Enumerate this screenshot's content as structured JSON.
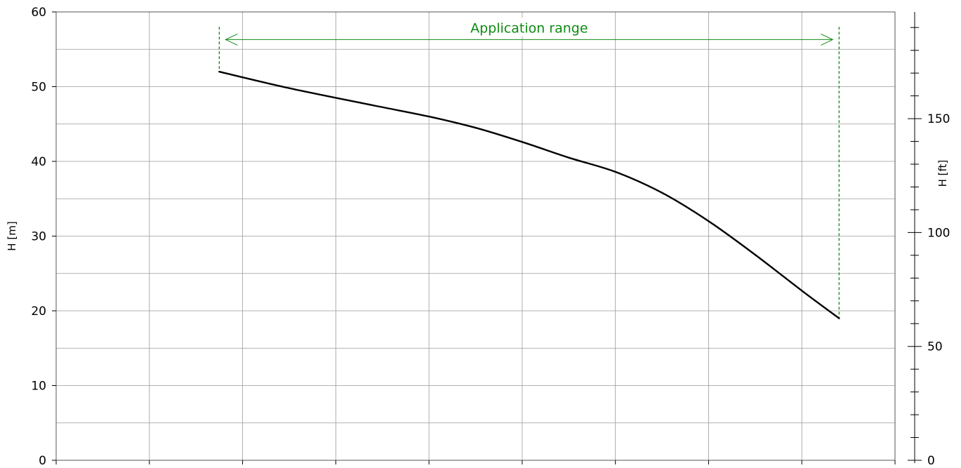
{
  "chart_data": {
    "type": "line",
    "title": "",
    "xlabel": "",
    "ylabel": "H [m]",
    "ylabel_right": "H [ft]",
    "xlim": [
      0,
      9
    ],
    "ylim": [
      0,
      60
    ],
    "ylim_right": [
      0,
      196.85
    ],
    "y_ticks": [
      0,
      10,
      20,
      30,
      40,
      50,
      60
    ],
    "y_right_ticks": [
      0,
      50,
      100,
      150
    ],
    "grid": true,
    "series": [
      {
        "color": "#000000",
        "x": [
          1.75,
          2.5,
          3.4,
          4.0,
          4.5,
          5.0,
          5.5,
          6.0,
          6.5,
          7.0,
          7.5,
          8.0,
          8.4
        ],
        "y": [
          52.0,
          49.8,
          47.5,
          46.0,
          44.5,
          42.6,
          40.5,
          38.6,
          35.8,
          32.0,
          27.5,
          22.7,
          19.0
        ]
      }
    ],
    "application_range": {
      "label": "Application range",
      "x_start": 1.75,
      "x_end": 8.4,
      "color": "#0f8a12"
    }
  }
}
